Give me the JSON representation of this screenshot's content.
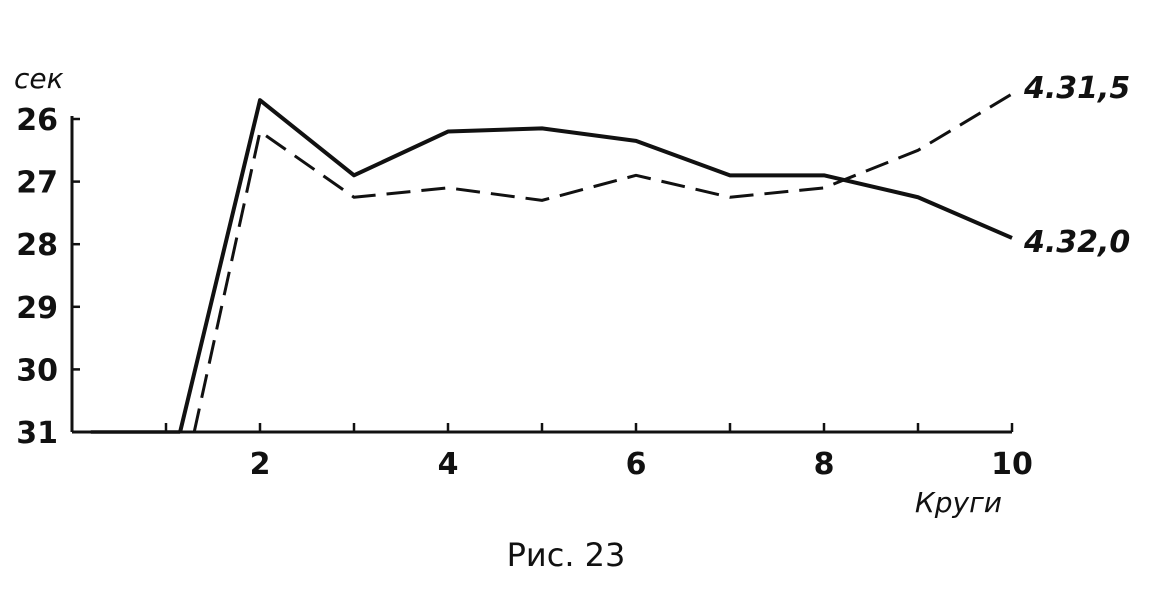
{
  "chart_data": {
    "type": "line",
    "title": "",
    "caption": "Рис. 23",
    "xlabel": "Круги",
    "ylabel": "сек",
    "x_ticks": [
      2,
      4,
      6,
      8,
      10
    ],
    "y_ticks": [
      26,
      27,
      28,
      29,
      30,
      31
    ],
    "ylim": [
      31,
      25.7
    ],
    "xlim": [
      0,
      10
    ],
    "y_inverted": true,
    "grid": false,
    "series": [
      {
        "style": "solid",
        "x": [
          1.15,
          2,
          3,
          4,
          5,
          6,
          7,
          8,
          9,
          10
        ],
        "y": [
          31,
          25.7,
          26.9,
          26.2,
          26.15,
          26.35,
          26.9,
          26.9,
          27.25,
          27.9
        ],
        "end_label": "4.32,0"
      },
      {
        "style": "dashed",
        "x": [
          1.3,
          2,
          3,
          4,
          5,
          6,
          7,
          8,
          9,
          10
        ],
        "y": [
          31,
          26.2,
          27.25,
          27.1,
          27.3,
          26.9,
          27.25,
          27.1,
          26.5,
          25.6
        ],
        "end_label": "4.31,5"
      }
    ],
    "baseline": {
      "x": [
        0.2,
        1.15
      ],
      "y": [
        31,
        31
      ]
    }
  }
}
